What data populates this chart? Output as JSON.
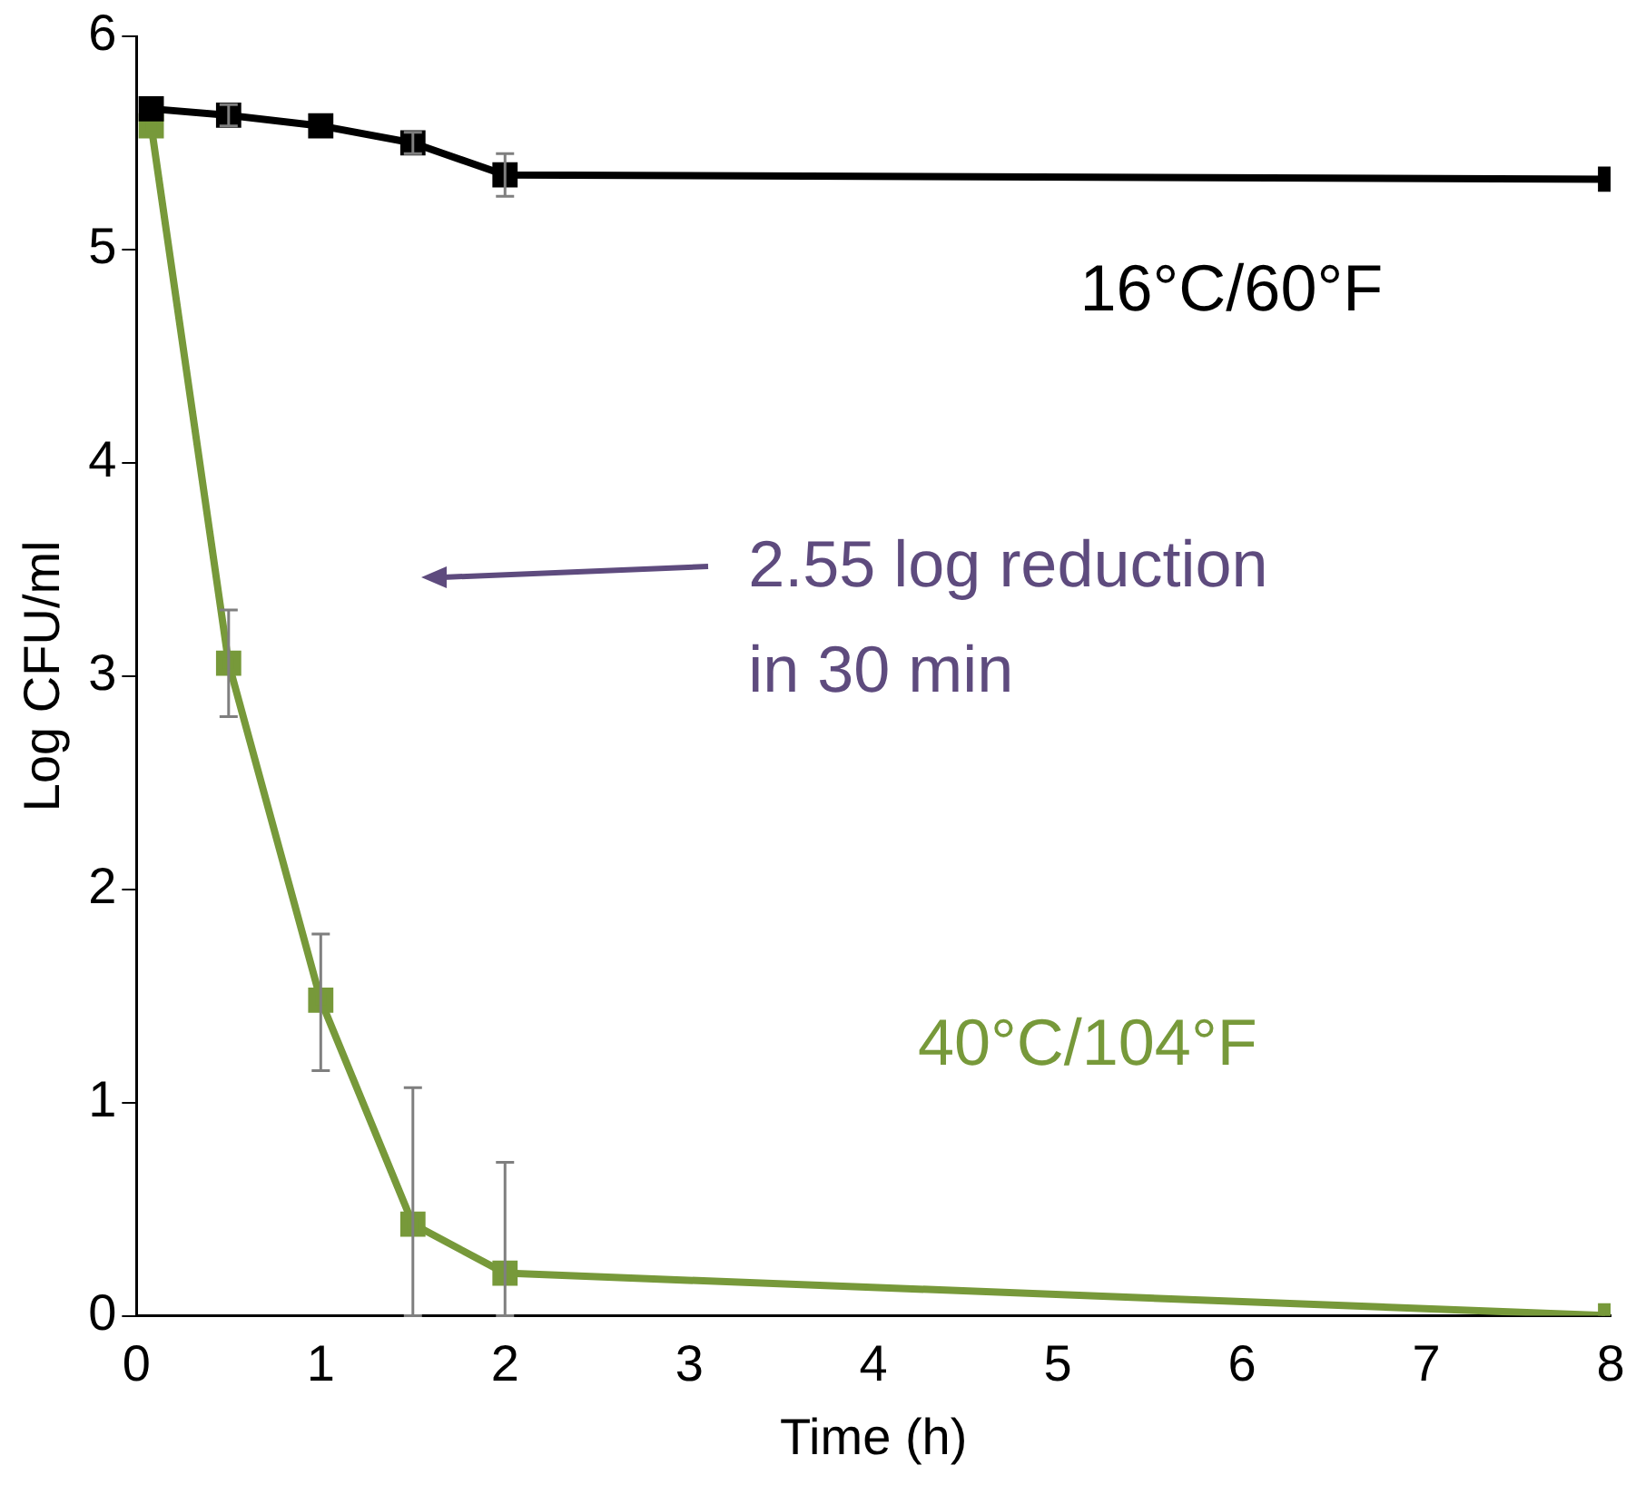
{
  "chart_data": {
    "type": "line",
    "xlabel": "Time (h)",
    "ylabel": "Log CFU/ml",
    "x": [
      0.08,
      0.5,
      1,
      1.5,
      2,
      8
    ],
    "xlim": [
      0,
      8
    ],
    "xticks": [
      0,
      1,
      2,
      3,
      4,
      5,
      6,
      7,
      8
    ],
    "ylim": [
      0,
      6
    ],
    "yticks": [
      0,
      1,
      2,
      3,
      4,
      5,
      6
    ],
    "series": [
      {
        "name": "16°C/60°F",
        "color": "#000000",
        "values": [
          5.66,
          5.63,
          5.58,
          5.5,
          5.35,
          5.33
        ],
        "errors": [
          null,
          0.05,
          null,
          0.05,
          [
            5.25,
            5.45
          ],
          null
        ]
      },
      {
        "name": "40°C/104°F",
        "color": "#77993a",
        "values": [
          5.58,
          3.06,
          1.48,
          0.43,
          0.2,
          0.0
        ],
        "errors": [
          null,
          [
            2.81,
            3.31
          ],
          [
            1.15,
            1.79
          ],
          [
            0,
            1.07
          ],
          [
            0,
            0.72
          ],
          null
        ]
      }
    ],
    "annotations": [
      "2.55 log reduction in 30 min"
    ],
    "grid": false,
    "legend": false,
    "marker": "square",
    "line_style": "solid"
  }
}
